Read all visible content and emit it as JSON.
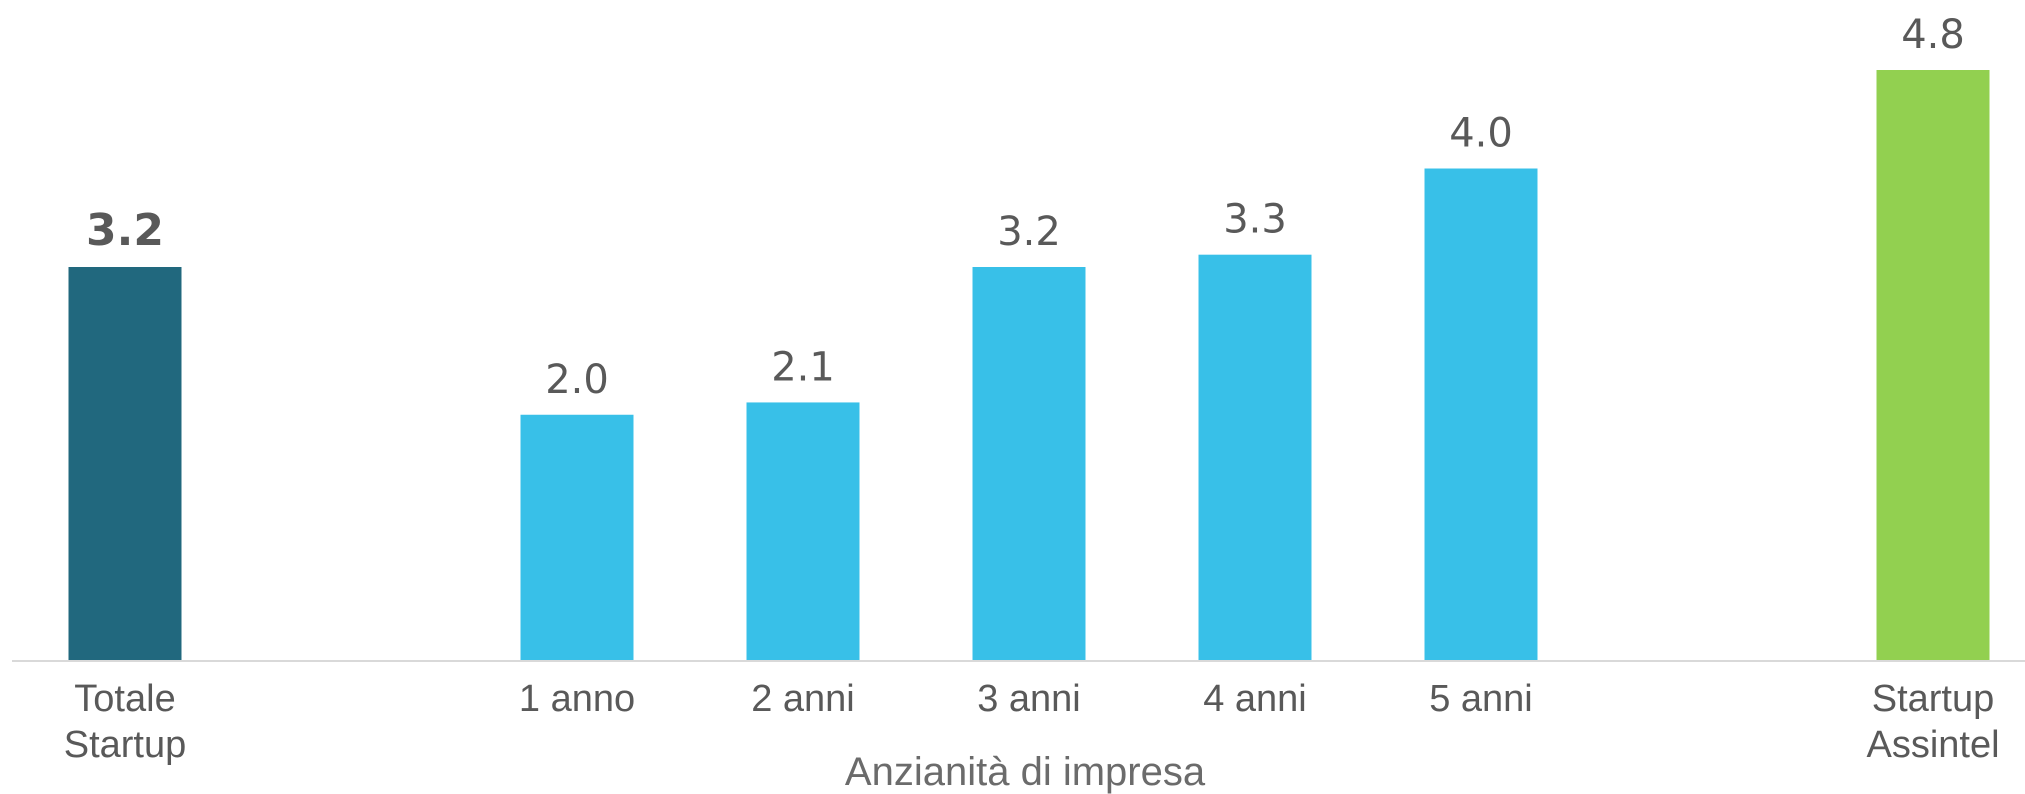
{
  "chart_data": {
    "type": "bar",
    "categories": [
      [
        "Totale",
        "Startup"
      ],
      [
        "1 anno"
      ],
      [
        "2 anni"
      ],
      [
        "3 anni"
      ],
      [
        "4 anni"
      ],
      [
        "5 anni"
      ],
      [
        "Startup",
        "Assintel"
      ]
    ],
    "values": [
      3.2,
      2.0,
      2.1,
      3.2,
      3.3,
      4.0,
      4.8
    ],
    "value_labels": [
      "3.2",
      "2.0",
      "2.1",
      "3.2",
      "3.3",
      "4.0",
      "4.8"
    ],
    "bar_colors": [
      "#21687e",
      "#38c0e8",
      "#38c0e8",
      "#38c0e8",
      "#38c0e8",
      "#38c0e8",
      "#92d050"
    ],
    "bold_value_index": 0,
    "xlabel": "Anzianità di impresa",
    "ylim": [
      0,
      4.8
    ],
    "grid": false
  }
}
